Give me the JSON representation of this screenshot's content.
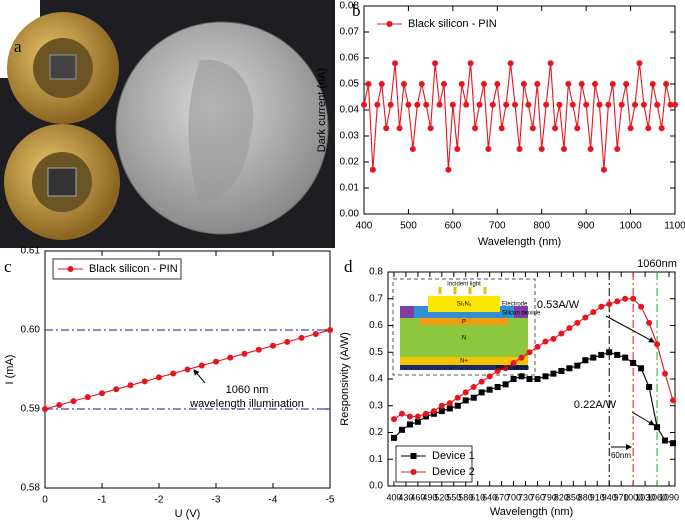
{
  "photo": {
    "label": "a"
  },
  "chart_data": [
    {
      "type": "line",
      "panel_label": "b",
      "xlabel": "Wavelength (nm)",
      "ylabel": "Dark current (nA)",
      "legend": "upper left",
      "legend_box": false,
      "xlim": [
        400,
        1100
      ],
      "xticks": [
        400,
        500,
        600,
        700,
        800,
        900,
        1000,
        1100
      ],
      "ylim": [
        0,
        0.08
      ],
      "yticks": [
        {
          "value": 0,
          "label": "0.00"
        },
        0.01,
        0.02,
        0.03,
        0.04,
        0.05,
        0.06,
        0.07,
        0.08
      ],
      "x": [
        400,
        410,
        420,
        430,
        440,
        450,
        460,
        470,
        480,
        490,
        500,
        510,
        520,
        530,
        540,
        550,
        560,
        570,
        580,
        590,
        600,
        610,
        620,
        630,
        640,
        650,
        660,
        670,
        680,
        690,
        700,
        710,
        720,
        730,
        740,
        750,
        760,
        770,
        780,
        790,
        800,
        810,
        820,
        830,
        840,
        850,
        860,
        870,
        880,
        890,
        900,
        910,
        920,
        930,
        940,
        950,
        960,
        970,
        980,
        990,
        1000,
        1010,
        1020,
        1030,
        1040,
        1050,
        1060,
        1070,
        1080,
        1090,
        1100
      ],
      "series": [
        {
          "name": "Black silicon - PIN",
          "color": "#e8141e",
          "marker": "circle",
          "values": [
            0.042,
            0.05,
            0.017,
            0.042,
            0.05,
            0.033,
            0.042,
            0.058,
            0.033,
            0.05,
            0.042,
            0.025,
            0.042,
            0.05,
            0.042,
            0.033,
            0.058,
            0.042,
            0.05,
            0.017,
            0.042,
            0.025,
            0.05,
            0.042,
            0.058,
            0.033,
            0.042,
            0.05,
            0.025,
            0.042,
            0.05,
            0.033,
            0.042,
            0.058,
            0.042,
            0.025,
            0.05,
            0.042,
            0.033,
            0.05,
            0.025,
            0.042,
            0.058,
            0.033,
            0.042,
            0.025,
            0.05,
            0.042,
            0.033,
            0.05,
            0.042,
            0.025,
            0.05,
            0.042,
            0.017,
            0.042,
            0.05,
            0.025,
            0.042,
            0.05,
            0.033,
            0.042,
            0.058,
            0.042,
            0.033,
            0.05,
            0.042,
            0.033,
            0.05,
            0.042,
            0.042
          ]
        }
      ]
    },
    {
      "type": "line",
      "panel_label": "c",
      "xlabel": "U (V)",
      "ylabel": "I (mA)",
      "legend": "upper left",
      "legend_box": true,
      "xlim": [
        0,
        -5
      ],
      "xticks": [
        0,
        -1,
        -2,
        -3,
        -4,
        -5
      ],
      "ylim": [
        0.58,
        0.61
      ],
      "yticks": [
        0.58,
        0.59,
        {
          "value": 0.6,
          "label": "0.60"
        },
        0.61
      ],
      "hlines": [
        {
          "y": 0.6,
          "color": "#1a1aa0"
        },
        {
          "y": 0.59,
          "color": "#1a1aa0"
        }
      ],
      "annotation": [
        "1060 nm",
        "wavelength illumination"
      ],
      "x": [
        0,
        -0.25,
        -0.5,
        -0.75,
        -1,
        -1.25,
        -1.5,
        -1.75,
        -2,
        -2.25,
        -2.5,
        -2.75,
        -3,
        -3.25,
        -3.5,
        -3.75,
        -4,
        -4.25,
        -4.5,
        -4.75,
        -5
      ],
      "series": [
        {
          "name": "Black silicon - PIN",
          "color": "#e8141e",
          "marker": "circle",
          "values": [
            0.59,
            0.5905,
            0.591,
            0.5915,
            0.592,
            0.5925,
            0.593,
            0.5935,
            0.594,
            0.5945,
            0.595,
            0.5955,
            0.596,
            0.5965,
            0.597,
            0.5975,
            0.598,
            0.5985,
            0.599,
            0.5995,
            0.6
          ]
        }
      ]
    },
    {
      "type": "line",
      "panel_label": "d",
      "xlabel": "Wavelength (nm)",
      "ylabel": "Responsivity (A/W)",
      "legend": "lower left",
      "legend_box": true,
      "xlim": [
        385,
        1105
      ],
      "xticks": [
        400,
        430,
        460,
        490,
        520,
        550,
        580,
        610,
        640,
        670,
        700,
        730,
        760,
        790,
        820,
        850,
        880,
        910,
        940,
        970,
        1000,
        1030,
        1060,
        1090
      ],
      "ylim": [
        0,
        0.8
      ],
      "yticks": [
        {
          "value": 0,
          "label": "0.0"
        },
        0.1,
        0.2,
        0.3,
        0.4,
        0.5,
        0.6,
        0.7,
        0.8
      ],
      "vlines": [
        {
          "x": 940,
          "color": "#000000"
        },
        {
          "x": 1000,
          "color": "#e8141e"
        },
        {
          "x": 1060,
          "color": "#22b022",
          "label": "1060nm"
        }
      ],
      "annotations": [
        "0.53A/W",
        "0.22A/W",
        "60nm"
      ],
      "inset": [
        "Incident light",
        "Si₃N₄",
        "Electrode",
        "Silicon dioxide",
        "P",
        "N",
        "N+",
        "Black silicon"
      ],
      "x": [
        400,
        420,
        440,
        460,
        480,
        500,
        520,
        540,
        560,
        580,
        600,
        620,
        640,
        660,
        680,
        700,
        720,
        740,
        760,
        780,
        800,
        820,
        840,
        860,
        880,
        900,
        920,
        940,
        960,
        980,
        1000,
        1020,
        1040,
        1060,
        1080,
        1100
      ],
      "series": [
        {
          "name": "Device 1",
          "color": "#000000",
          "marker": "square",
          "values": [
            0.18,
            0.21,
            0.23,
            0.24,
            0.26,
            0.27,
            0.28,
            0.29,
            0.3,
            0.32,
            0.33,
            0.35,
            0.36,
            0.37,
            0.38,
            0.4,
            0.41,
            0.4,
            0.4,
            0.41,
            0.42,
            0.43,
            0.44,
            0.45,
            0.47,
            0.48,
            0.49,
            0.5,
            0.49,
            0.48,
            0.46,
            0.44,
            0.37,
            0.22,
            0.17,
            0.16
          ]
        },
        {
          "name": "Device 2",
          "color": "#e8141e",
          "marker": "circle",
          "values": [
            0.25,
            0.27,
            0.26,
            0.26,
            0.27,
            0.28,
            0.3,
            0.31,
            0.33,
            0.35,
            0.37,
            0.39,
            0.41,
            0.43,
            0.44,
            0.46,
            0.48,
            0.5,
            0.52,
            0.54,
            0.55,
            0.57,
            0.59,
            0.61,
            0.63,
            0.65,
            0.67,
            0.68,
            0.69,
            0.7,
            0.7,
            0.67,
            0.61,
            0.53,
            0.42,
            0.32
          ]
        }
      ]
    }
  ]
}
